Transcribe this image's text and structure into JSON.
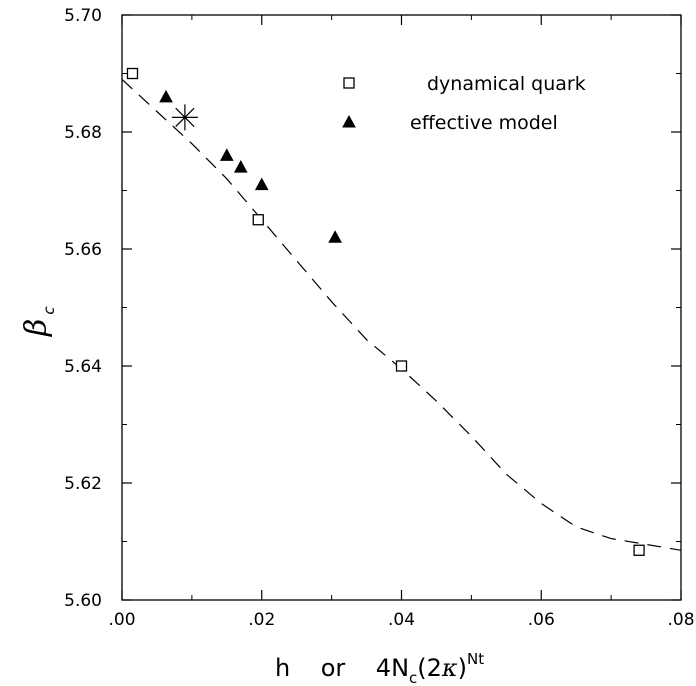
{
  "chart_data": {
    "type": "scatter",
    "xlim": [
      0.0,
      0.08
    ],
    "ylim": [
      5.6,
      5.7
    ],
    "x_ticks": [
      0.0,
      0.02,
      0.04,
      0.06,
      0.08
    ],
    "x_tick_labels": [
      ".00",
      ".02",
      ".04",
      ".06",
      ".08"
    ],
    "y_ticks": [
      5.6,
      5.62,
      5.64,
      5.66,
      5.68,
      5.7
    ],
    "y_tick_labels": [
      "5.60",
      "5.62",
      "5.64",
      "5.66",
      "5.68",
      "5.70"
    ],
    "xlabel": {
      "text": "h    or    4N",
      "subscript": "c",
      "middle": "(2",
      "kappa": "κ",
      "close": ")",
      "superscript": "Nt"
    },
    "ylabel": {
      "symbol": "β",
      "subscript": "c"
    },
    "grid": false,
    "legend_position": "top-right",
    "series": [
      {
        "name": "dynamical quark",
        "marker": "open-square",
        "points": [
          {
            "x": 0.0015,
            "y": 5.69,
            "err": 0.002
          },
          {
            "x": 0.0195,
            "y": 5.665,
            "err": 0.003
          },
          {
            "x": 0.04,
            "y": 5.64,
            "err": 0.005
          },
          {
            "x": 0.074,
            "y": 5.6085,
            "err": 0.01
          }
        ]
      },
      {
        "name": "effective model",
        "marker": "filled-triangle",
        "points": [
          {
            "x": 0.0063,
            "y": 5.686,
            "err": 0.0005
          },
          {
            "x": 0.015,
            "y": 5.676,
            "err": 0.0008
          },
          {
            "x": 0.017,
            "y": 5.674,
            "err": 0.0008
          },
          {
            "x": 0.02,
            "y": 5.671,
            "err": 0.0008
          },
          {
            "x": 0.0305,
            "y": 5.662,
            "err": 0.002
          }
        ]
      }
    ],
    "special_point": {
      "marker": "asterisk",
      "x": 0.009,
      "y": 5.6825
    },
    "fit_curve": {
      "style": "dashed",
      "points": [
        [
          0.0,
          5.689
        ],
        [
          0.005,
          5.6835
        ],
        [
          0.01,
          5.678
        ],
        [
          0.015,
          5.672
        ],
        [
          0.02,
          5.665
        ],
        [
          0.025,
          5.658
        ],
        [
          0.03,
          5.651
        ],
        [
          0.035,
          5.6445
        ],
        [
          0.04,
          5.6395
        ],
        [
          0.045,
          5.634
        ],
        [
          0.05,
          5.628
        ],
        [
          0.055,
          5.6215
        ],
        [
          0.06,
          5.6165
        ],
        [
          0.065,
          5.6125
        ],
        [
          0.07,
          5.6105
        ],
        [
          0.075,
          5.6095
        ],
        [
          0.08,
          5.6085
        ]
      ]
    }
  }
}
